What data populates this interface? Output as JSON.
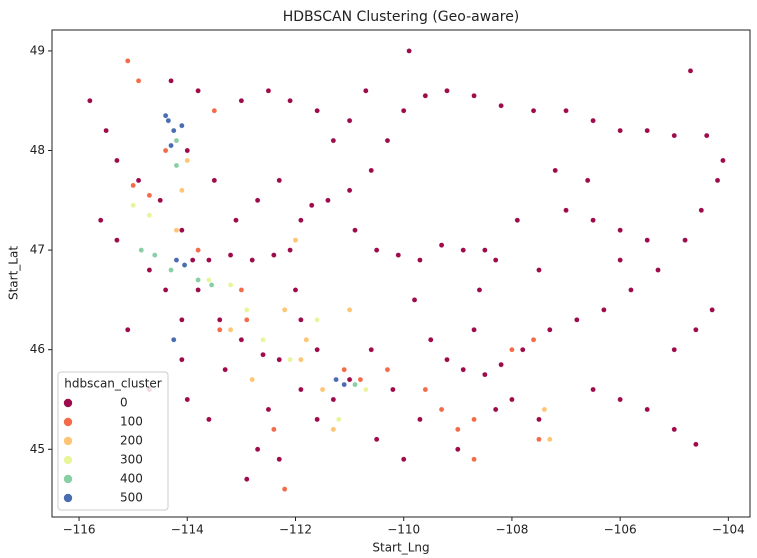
{
  "chart_data": {
    "type": "scatter",
    "title": "HDBSCAN Clustering (Geo-aware)",
    "xlabel": "Start_Lng",
    "ylabel": "Start_Lat",
    "xlim": [
      -116.5,
      -103.6
    ],
    "ylim": [
      44.32,
      49.21
    ],
    "xticks": [
      {
        "value": -116,
        "label": "−116"
      },
      {
        "value": -114,
        "label": "−114"
      },
      {
        "value": -112,
        "label": "−112"
      },
      {
        "value": -110,
        "label": "−110"
      },
      {
        "value": -108,
        "label": "−108"
      },
      {
        "value": -106,
        "label": "−106"
      },
      {
        "value": -104,
        "label": "−104"
      }
    ],
    "yticks": [
      45,
      46,
      47,
      48,
      49
    ],
    "grid": false,
    "legend_title": "hdbscan_cluster",
    "legend_position": "lower left",
    "series": [
      {
        "name": "0",
        "color": "#9e0b4a",
        "x": [
          -115.8,
          -115.5,
          -115.3,
          -114.9,
          -114.5,
          -114.1,
          -113.9,
          -113.6,
          -113.2,
          -112.8,
          -112.4,
          -112.1,
          -111.9,
          -111.7,
          -111.4,
          -111.0,
          -110.6,
          -110.3,
          -110.0,
          -109.6,
          -109.2,
          -108.7,
          -110.9,
          -110.5,
          -110.1,
          -109.7,
          -109.3,
          -108.9,
          -108.5,
          -109.8,
          -109.5,
          -109.2,
          -108.9,
          -108.5,
          -108.2,
          -107.8,
          -107.3,
          -106.8,
          -106.3,
          -105.8,
          -105.3,
          -104.8,
          -104.5,
          -104.2,
          -104.1,
          -106.0,
          -105.5,
          -105.0,
          -104.4,
          -106.5,
          -107.0,
          -107.6,
          -108.2,
          -108.6,
          -108.7,
          -108.0,
          -107.5,
          -106.5,
          -106.0,
          -105.5,
          -105.0,
          -104.6,
          -111.0,
          -111.3,
          -111.6,
          -111.9,
          -112.3,
          -112.6,
          -113.0,
          -113.4,
          -113.8,
          -114.1,
          -114.1,
          -114.0,
          -112.5,
          -112.7,
          -112.9,
          -112.0,
          -111.9,
          -111.6,
          -110.6,
          -110.2,
          -109.7,
          -109.0,
          -108.3,
          -115.6,
          -115.3,
          -114.7,
          -114.4,
          -113.0,
          -112.5,
          -112.1,
          -111.6,
          -111.3,
          -111.0,
          -110.7,
          -113.8,
          -114.3,
          -114.0,
          -113.5,
          -113.1,
          -112.7,
          -112.3,
          -107.0,
          -106.5,
          -106.0,
          -105.5,
          -107.5,
          -107.2,
          -106.6,
          -104.6,
          -104.3,
          -110.0,
          -110.5,
          -113.3,
          -114.7,
          -115.1,
          -113.6,
          -112.3,
          -109.9,
          -104.7,
          -105.0,
          -106.0,
          -107.9,
          -108.3
        ],
        "y": [
          48.5,
          48.2,
          47.9,
          47.7,
          47.5,
          47.2,
          46.9,
          46.9,
          46.95,
          46.9,
          46.95,
          47.0,
          47.3,
          47.45,
          47.5,
          47.6,
          47.8,
          48.1,
          48.4,
          48.55,
          48.6,
          48.55,
          47.2,
          47.0,
          46.95,
          46.9,
          47.05,
          47.0,
          47.0,
          46.5,
          46.1,
          45.9,
          45.8,
          45.75,
          45.85,
          46.0,
          46.2,
          46.3,
          46.4,
          46.6,
          46.8,
          47.1,
          47.4,
          47.7,
          47.9,
          48.2,
          48.2,
          48.15,
          48.15,
          48.3,
          48.4,
          48.4,
          48.45,
          46.6,
          46.2,
          45.5,
          45.3,
          45.6,
          45.5,
          45.4,
          45.2,
          45.05,
          45.7,
          45.5,
          45.3,
          45.6,
          45.9,
          45.95,
          46.1,
          46.3,
          46.6,
          46.3,
          45.9,
          45.5,
          45.4,
          45.0,
          44.7,
          46.6,
          46.3,
          46.0,
          46.0,
          45.6,
          45.3,
          45.0,
          45.4,
          47.3,
          47.1,
          46.8,
          46.6,
          48.5,
          48.6,
          48.5,
          48.4,
          48.1,
          48.3,
          48.6,
          48.6,
          48.7,
          48.0,
          47.7,
          47.3,
          47.5,
          47.7,
          47.4,
          47.3,
          47.2,
          47.1,
          46.8,
          47.8,
          47.7,
          46.2,
          46.4,
          44.9,
          45.1,
          45.8,
          45.6,
          46.2,
          45.3,
          44.9,
          49.0,
          48.8,
          46.0,
          46.9,
          47.3,
          46.9
        ]
      },
      {
        "name": "100",
        "color": "#f26c4a",
        "x": [
          -115.1,
          -114.9,
          -115.0,
          -114.7,
          -113.0,
          -112.9,
          -111.1,
          -110.8,
          -110.3,
          -109.6,
          -109.3,
          -109.0,
          -108.7,
          -108.0,
          -107.6,
          -107.5,
          -112.4,
          -112.2,
          -114.4,
          -113.8,
          -113.5,
          -113.4,
          -108.7
        ],
        "y": [
          48.9,
          48.7,
          47.65,
          47.55,
          46.6,
          46.3,
          45.8,
          45.7,
          45.8,
          45.6,
          45.4,
          45.2,
          45.3,
          46.0,
          46.1,
          45.1,
          45.2,
          44.6,
          48.0,
          47.0,
          48.4,
          46.2,
          44.9
        ]
      },
      {
        "name": "200",
        "color": "#fdc574",
        "x": [
          -114.1,
          -114.0,
          -114.2,
          -113.2,
          -112.2,
          -111.8,
          -111.9,
          -111.5,
          -111.3,
          -107.4,
          -107.3,
          -112.8,
          -111.0,
          -112.0
        ],
        "y": [
          47.6,
          47.9,
          47.2,
          46.2,
          46.4,
          46.1,
          45.9,
          45.6,
          45.2,
          45.4,
          45.1,
          45.7,
          46.4,
          47.1
        ]
      },
      {
        "name": "300",
        "color": "#e9f59d",
        "x": [
          -115.0,
          -114.7,
          -113.6,
          -113.2,
          -112.9,
          -112.6,
          -112.1,
          -111.2,
          -111.6,
          -110.7
        ],
        "y": [
          47.45,
          47.35,
          46.7,
          46.65,
          46.4,
          46.1,
          45.9,
          45.3,
          46.3,
          45.6
        ]
      },
      {
        "name": "400",
        "color": "#88cfa4",
        "x": [
          -114.85,
          -114.6,
          -114.3,
          -113.8,
          -113.55,
          -114.2,
          -114.2,
          -110.9
        ],
        "y": [
          47.0,
          46.95,
          46.8,
          46.7,
          46.65,
          48.1,
          47.85,
          45.65
        ]
      },
      {
        "name": "500",
        "color": "#4a6db2",
        "x": [
          -114.35,
          -114.25,
          -114.4,
          -114.1,
          -114.3,
          -114.2,
          -114.05,
          -111.25,
          -111.1,
          -114.25
        ],
        "y": [
          48.3,
          48.2,
          48.35,
          48.25,
          48.05,
          46.9,
          46.85,
          45.7,
          45.65,
          46.1
        ]
      }
    ]
  }
}
